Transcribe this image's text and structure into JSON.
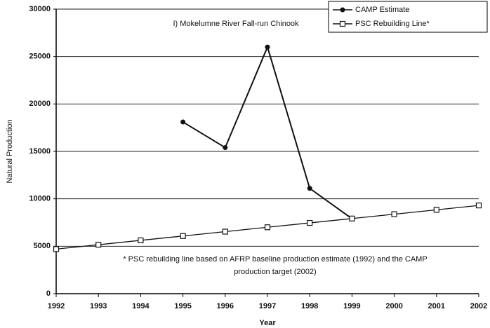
{
  "chart_data": {
    "type": "line",
    "title": "I) Mokelumne River Fall-run Chinook",
    "x_label": "Year",
    "y_label": "Natural Production",
    "x": [
      1992,
      1993,
      1994,
      1995,
      1996,
      1997,
      1998,
      1999,
      2000,
      2001,
      2002
    ],
    "series": [
      {
        "name": "CAMP Estimate",
        "color": "#111111",
        "marker": "circle",
        "values": [
          null,
          null,
          null,
          18100,
          15400,
          26000,
          11100,
          7900,
          null,
          null,
          null
        ]
      },
      {
        "name": "PSC Rebuilding Line*",
        "color": "#111111",
        "marker": "square",
        "values": [
          4700,
          5160,
          5620,
          6080,
          6540,
          7000,
          7460,
          7920,
          8380,
          8840,
          9300
        ]
      }
    ],
    "xlim": [
      1992,
      2002
    ],
    "xticks": [
      1992,
      1993,
      1994,
      1995,
      1996,
      1997,
      1998,
      1999,
      2000,
      2001,
      2002
    ],
    "ylim": [
      0,
      30000
    ],
    "yticks": [
      0,
      5000,
      10000,
      15000,
      20000,
      25000,
      30000
    ],
    "grid": true,
    "legend": "top-right",
    "note": [
      "* PSC rebuilding line based on AFRP baseline production estimate (1992) and the CAMP",
      "production target (2002)"
    ]
  }
}
